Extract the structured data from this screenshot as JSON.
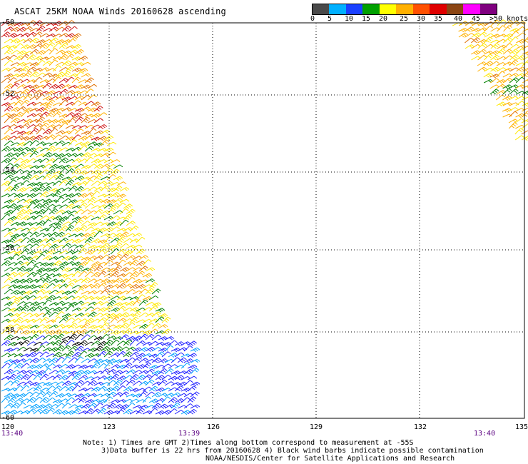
{
  "title": "ASCAT 25KM NOAA Winds 20160628 ascending",
  "legend": {
    "labels": [
      "0",
      "5",
      "10",
      "15",
      "20",
      "25",
      "30",
      "35",
      "40",
      "45",
      ">50 knots"
    ],
    "colors": [
      "#4a4a4a",
      "#00b0ff",
      "#1a40ff",
      "#00a000",
      "#ffff00",
      "#ffb000",
      "#ff5000",
      "#e00000",
      "#8b4513",
      "#ff00ff",
      "#800080"
    ]
  },
  "map": {
    "lat_labels": [
      "-50",
      "-52",
      "-54",
      "-56",
      "-58",
      "-60"
    ],
    "lon_labels": [
      "120",
      "123",
      "126",
      "129",
      "132",
      "135"
    ],
    "time_labels": [
      "13:40",
      "13:39",
      "13:40"
    ],
    "barb_colors": {
      "red": "#cc1010",
      "orange": "#e07000",
      "gold": "#ffb000",
      "yellow": "#ffe800",
      "green": "#008000",
      "blue": "#2020ff",
      "cyan": "#00a0ff",
      "black": "#000000"
    }
  },
  "notes": {
    "line1": "Note: 1) Times are GMT 2)Times along bottom correspond to measurement at -55S",
    "line2": "3)Data buffer is 22 hrs from 20160628 4) Black wind barbs indicate possible contamination",
    "line3": "NOAA/NESDIS/Center for Satellite Applications and Research"
  }
}
